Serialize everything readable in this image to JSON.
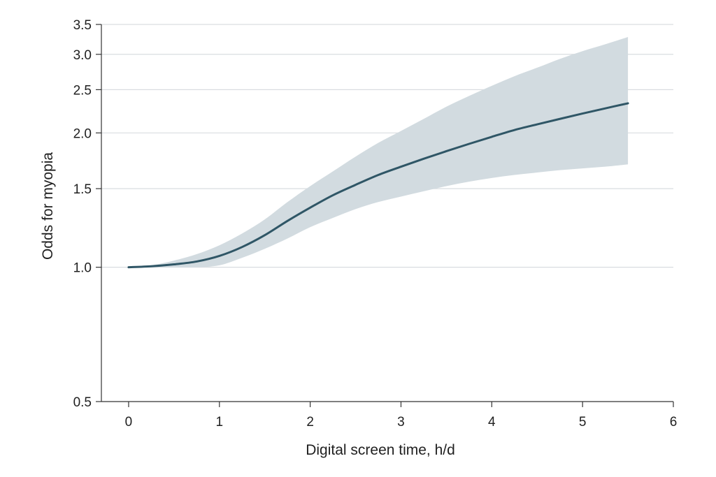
{
  "chart_data": {
    "type": "line",
    "title": "",
    "xlabel": "Digital screen time, h/d",
    "ylabel": "Odds for myopia",
    "y_scale": "log",
    "xlim": [
      -0.3,
      6
    ],
    "ylim": [
      0.5,
      3.5
    ],
    "x_ticks": [
      0,
      1,
      2,
      3,
      4,
      5,
      6
    ],
    "x_tick_labels": [
      "0",
      "1",
      "2",
      "3",
      "4",
      "5",
      "6"
    ],
    "y_ticks": [
      0.5,
      1.0,
      1.5,
      2.0,
      2.5,
      3.0,
      3.5
    ],
    "y_tick_labels": [
      "0.5",
      "1.0",
      "1.5",
      "2.0",
      "2.5",
      "3.0",
      "3.5"
    ],
    "gridlines_y": [
      1.0,
      1.5,
      2.0,
      2.5,
      3.0,
      3.5
    ],
    "colors": {
      "line": "#2f5666",
      "band": "#d2dbe0",
      "grid": "#d9dde0",
      "axis": "#333333"
    },
    "series": [
      {
        "name": "Odds for myopia",
        "x": [
          0,
          0.25,
          0.5,
          0.75,
          1.0,
          1.25,
          1.5,
          1.75,
          2.0,
          2.25,
          2.5,
          2.75,
          3.0,
          3.25,
          3.5,
          3.75,
          4.0,
          4.25,
          4.5,
          4.75,
          5.0,
          5.25,
          5.5
        ],
        "y": [
          1.0,
          1.005,
          1.015,
          1.03,
          1.06,
          1.11,
          1.18,
          1.27,
          1.36,
          1.45,
          1.53,
          1.61,
          1.68,
          1.75,
          1.82,
          1.89,
          1.96,
          2.03,
          2.09,
          2.15,
          2.21,
          2.27,
          2.33
        ],
        "ci_lower": [
          1.0,
          1.0,
          1.0,
          1.0,
          1.01,
          1.05,
          1.1,
          1.16,
          1.23,
          1.29,
          1.35,
          1.4,
          1.44,
          1.48,
          1.52,
          1.555,
          1.585,
          1.61,
          1.63,
          1.65,
          1.665,
          1.68,
          1.7
        ],
        "ci_upper": [
          1.0,
          1.01,
          1.035,
          1.07,
          1.12,
          1.19,
          1.28,
          1.4,
          1.52,
          1.64,
          1.77,
          1.9,
          2.02,
          2.15,
          2.29,
          2.42,
          2.55,
          2.68,
          2.8,
          2.93,
          3.05,
          3.16,
          3.28
        ]
      }
    ]
  }
}
